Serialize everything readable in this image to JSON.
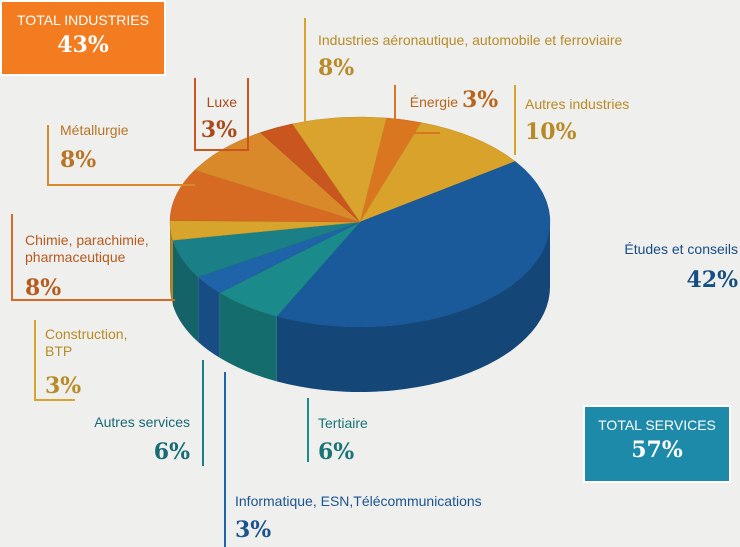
{
  "chart_data": {
    "type": "pie",
    "categories": [
      "Énergie",
      "Autres industries",
      "Études et conseils",
      "Tertiaire",
      "Informatique, ESN,Télécommunications",
      "Autres services",
      "Construction, BTP",
      "Chimie, parachimie, pharmaceutique",
      "Métallurgie",
      "Luxe",
      "Industries aéronautique, automobile et ferroviaire"
    ],
    "values": [
      3,
      10,
      42,
      6,
      3,
      6,
      3,
      8,
      8,
      3,
      8
    ],
    "value_labels": [
      "3%",
      "10%",
      "42%",
      "6%",
      "3%",
      "6%",
      "3%",
      "8%",
      "8%",
      "3%",
      "8%"
    ],
    "colors": [
      "#d9761f",
      "#d9a22a",
      "#1a5a9a",
      "#1b8a8a",
      "#1f63a8",
      "#1a7f87",
      "#d8a52c",
      "#d66a22",
      "#d9892a",
      "#c8561e",
      "#d9a32e"
    ],
    "annotations": [
      {
        "text": "TOTAL INDUSTRIES",
        "value": 43,
        "value_label": "43%",
        "color": "#f47c20"
      },
      {
        "text": "TOTAL SERVICES",
        "value": 57,
        "value_label": "57%",
        "color": "#1c8aa8"
      }
    ]
  }
}
